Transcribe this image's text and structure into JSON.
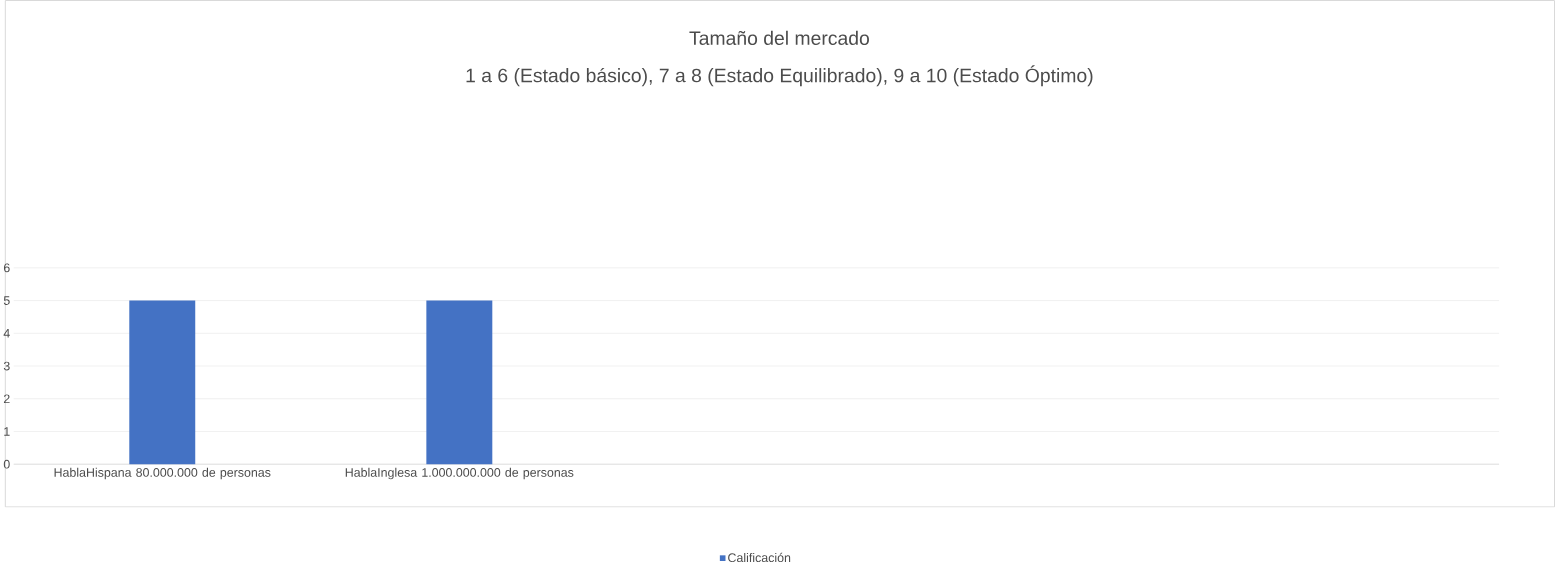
{
  "chart_data": {
    "type": "bar",
    "title": "Tamaño del mercado",
    "subtitle": "1 a 6 (Estado básico), 7 a 8 (Estado Equilibrado), 9 a 10 (Estado Óptimo)",
    "categories": [
      "HablaHispana 80.000.000 de personas",
      "HablaInglesa 1.000.000.000 de personas",
      null,
      null,
      null
    ],
    "series": [
      {
        "name": "Calificación",
        "color": "#4472c4",
        "values": [
          5,
          5,
          null,
          null,
          null
        ]
      }
    ],
    "ylim": [
      0,
      6
    ],
    "yticks": [
      0,
      1,
      2,
      3,
      4,
      5,
      6
    ],
    "grid": "y",
    "legend": "bottom"
  }
}
